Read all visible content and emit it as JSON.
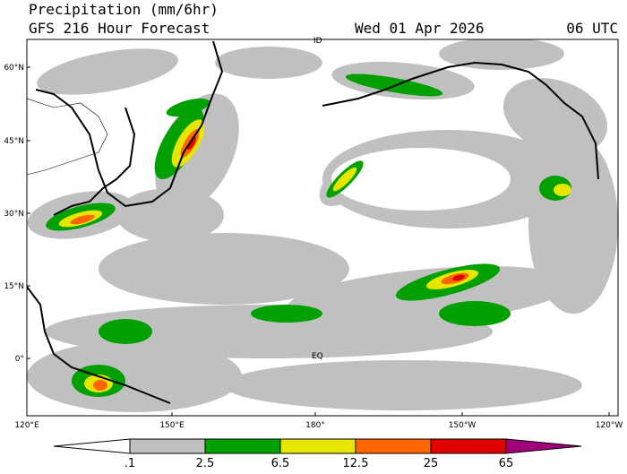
{
  "header": {
    "title": "Precipitation (mm/6hr)",
    "subtitle": "GFS 216 Hour Forecast",
    "valid": "Wed 01 Apr 2026",
    "hour": "06 UTC"
  },
  "map": {
    "lat_labels": [
      "60°N",
      "45°N",
      "30°N",
      "15°N",
      "0°"
    ],
    "lon_labels": [
      "120°E",
      "150°E",
      "180°",
      "150°W",
      "120°W"
    ],
    "annotations": [
      "EQ",
      "ID"
    ]
  },
  "colorbar": {
    "ticks": [
      {
        "value": 0.1,
        "label": ".1"
      },
      2.5,
      6.5,
      12.5,
      25,
      65
    ],
    "colors": [
      "#ffffff",
      "#c0c0c0",
      "#00a000",
      "#e6e600",
      "#ff6600",
      "#e00000",
      "#a0007a"
    ]
  }
}
